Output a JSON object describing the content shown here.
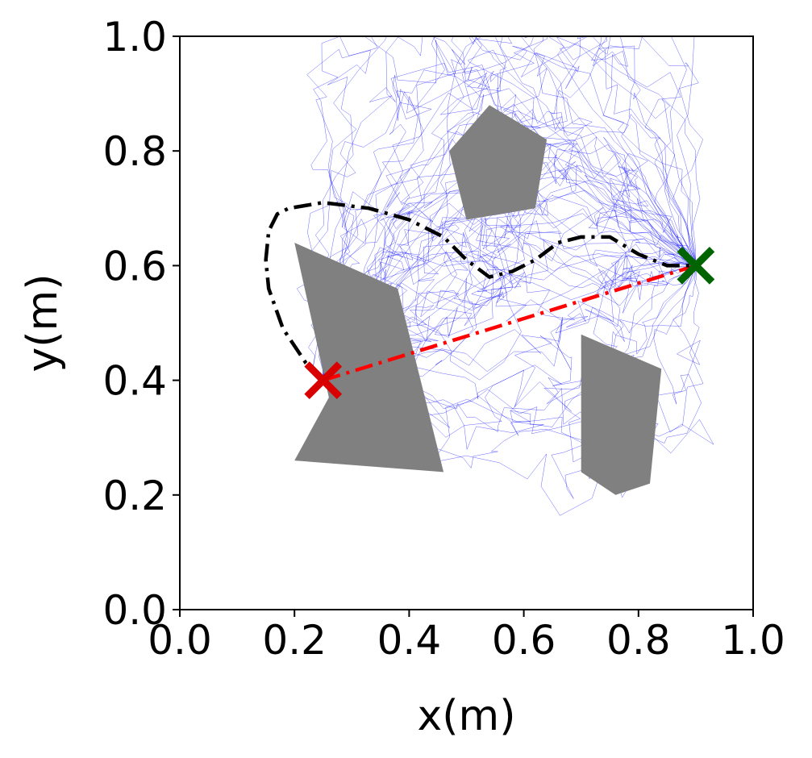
{
  "chart_data": {
    "type": "line",
    "title": "",
    "xlabel": "x(m)",
    "ylabel": "y(m)",
    "xlim": [
      0.0,
      1.0
    ],
    "ylim": [
      0.0,
      1.0
    ],
    "xticks": [
      "0.0",
      "0.2",
      "0.4",
      "0.6",
      "0.8",
      "1.0"
    ],
    "yticks": [
      "0.0",
      "0.2",
      "0.4",
      "0.6",
      "0.8",
      "1.0"
    ],
    "grid": false,
    "legend": null,
    "start_marker": {
      "x": 0.25,
      "y": 0.4,
      "symbol": "X",
      "color": "#d90000"
    },
    "goal_marker": {
      "x": 0.9,
      "y": 0.6,
      "symbol": "X",
      "color": "#006400"
    },
    "obstacles": [
      {
        "name": "pentagon-obstacle",
        "color": "#808080",
        "points": [
          [
            0.54,
            0.88
          ],
          [
            0.64,
            0.82
          ],
          [
            0.62,
            0.7
          ],
          [
            0.5,
            0.68
          ],
          [
            0.47,
            0.8
          ]
        ]
      },
      {
        "name": "left-obstacle",
        "color": "#808080",
        "points": [
          [
            0.2,
            0.64
          ],
          [
            0.38,
            0.56
          ],
          [
            0.46,
            0.24
          ],
          [
            0.2,
            0.26
          ],
          [
            0.26,
            0.37
          ]
        ]
      },
      {
        "name": "right-obstacle",
        "color": "#808080",
        "points": [
          [
            0.7,
            0.48
          ],
          [
            0.84,
            0.42
          ],
          [
            0.82,
            0.22
          ],
          [
            0.76,
            0.2
          ],
          [
            0.7,
            0.24
          ]
        ]
      }
    ],
    "series": [
      {
        "style": "dash-dot",
        "color": "#ff0000",
        "x": [
          0.25,
          0.9
        ],
        "y": [
          0.4,
          0.6
        ]
      },
      {
        "style": "dash-dot",
        "color": "#000000",
        "x": [
          0.25,
          0.22,
          0.18,
          0.155,
          0.15,
          0.155,
          0.17,
          0.19,
          0.25,
          0.33,
          0.4,
          0.46,
          0.5,
          0.54,
          0.58,
          0.62,
          0.66,
          0.7,
          0.75,
          0.8,
          0.85,
          0.9
        ],
        "y": [
          0.4,
          0.43,
          0.49,
          0.56,
          0.61,
          0.66,
          0.69,
          0.7,
          0.71,
          0.7,
          0.68,
          0.65,
          0.61,
          0.58,
          0.59,
          0.61,
          0.64,
          0.65,
          0.65,
          0.62,
          0.6,
          0.6
        ]
      }
    ],
    "sampled_paths": {
      "count": 60,
      "color": "#0000ff"
    }
  }
}
